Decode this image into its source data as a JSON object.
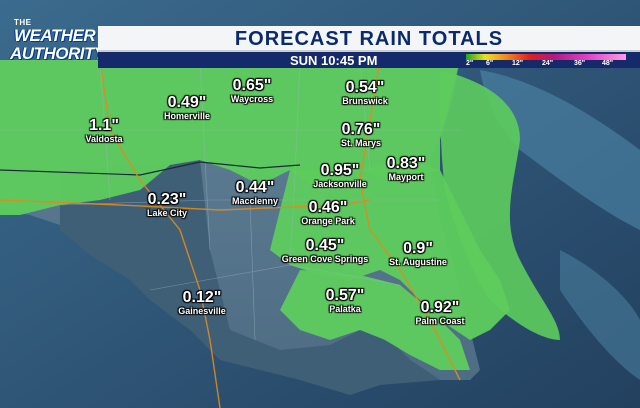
{
  "branding": {
    "line1": "THE",
    "line2": "WEATHER",
    "line3": "AUTHORITY"
  },
  "header": {
    "title": "FORECAST RAIN TOTALS",
    "time": "SUN 10:45 PM"
  },
  "legend": {
    "labels": [
      "2\"",
      "6\"",
      "12\"",
      "24\"",
      "36\"",
      "48\""
    ]
  },
  "locations": [
    {
      "value": "0.65\"",
      "name": "Waycross"
    },
    {
      "value": "0.54\"",
      "name": "Brunswick"
    },
    {
      "value": "0.49\"",
      "name": "Homerville"
    },
    {
      "value": "1.1\"",
      "name": "Valdosta"
    },
    {
      "value": "0.76\"",
      "name": "St. Marys"
    },
    {
      "value": "0.95\"",
      "name": "Jacksonville"
    },
    {
      "value": "0.83\"",
      "name": "Mayport"
    },
    {
      "value": "0.44\"",
      "name": "Macclenny"
    },
    {
      "value": "0.23\"",
      "name": "Lake City"
    },
    {
      "value": "0.46\"",
      "name": "Orange Park"
    },
    {
      "value": "0.45\"",
      "name": "Green Cove Springs"
    },
    {
      "value": "0.9\"",
      "name": "St. Augustine"
    },
    {
      "value": "0.12\"",
      "name": "Gainesville"
    },
    {
      "value": "0.57\"",
      "name": "Palatka"
    },
    {
      "value": "0.92\"",
      "name": "Palm Coast"
    }
  ]
}
